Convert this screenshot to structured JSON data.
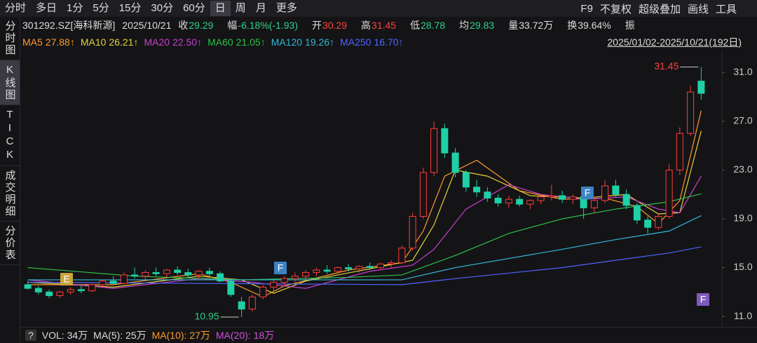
{
  "toolbar": {
    "tabs": [
      "分时",
      "多日",
      "1分",
      "5分",
      "15分",
      "30分",
      "60分",
      "日",
      "周",
      "月",
      "更多"
    ],
    "selected": 7,
    "right": [
      "F9",
      "不复权",
      "超级叠加",
      "画线",
      "工具"
    ]
  },
  "side_tabs": {
    "items": [
      "分时图",
      "K线图",
      "TICK",
      "成交明细",
      "分价表"
    ],
    "selected": 1
  },
  "header": {
    "symbol": "301292.SZ[海科新源]",
    "date": "2025/10/21",
    "items": [
      {
        "label": "收",
        "value": "29.29",
        "color": "#2fd08a"
      },
      {
        "label": "幅",
        "value": "-6.18%(-1.93)",
        "color": "#2fd08a"
      },
      {
        "label": "开",
        "value": "30.29",
        "color": "#ff4040"
      },
      {
        "label": "高",
        "value": "31.45",
        "color": "#ff4040"
      },
      {
        "label": "低",
        "value": "28.78",
        "color": "#2fd08a"
      },
      {
        "label": "均",
        "value": "29.83",
        "color": "#2fd08a"
      },
      {
        "label": "量",
        "value": "33.72万",
        "color": "#dddddd"
      },
      {
        "label": "换",
        "value": "39.64%",
        "color": "#dddddd"
      },
      {
        "label": "振",
        "value": "",
        "color": "#dddddd"
      }
    ]
  },
  "date_range": "2025/01/02-2025/10/21(192日)",
  "volume_bar": {
    "help": "?",
    "items": [
      {
        "text": "VOL: 34万",
        "color": "#dddddd"
      },
      {
        "text": "MA(5): 25万",
        "color": "#dddddd"
      },
      {
        "text": "MA(10): 27万",
        "color": "#ff9a2e"
      },
      {
        "text": "MA(20): 18万",
        "color": "#d050d8"
      }
    ]
  },
  "chart_data": {
    "type": "candlestick",
    "up_color": "#ff3b3b",
    "down_color": "#1fd0a6",
    "grid": false,
    "ylim": [
      10.2,
      32.8
    ],
    "yticks": [
      {
        "value": 11,
        "label": "11.0"
      },
      {
        "value": 15,
        "label": "15.0"
      },
      {
        "value": 19,
        "label": "19.0"
      },
      {
        "value": 23,
        "label": "23.0"
      },
      {
        "value": 27,
        "label": "27.0"
      },
      {
        "value": 31,
        "label": "31.0"
      }
    ],
    "ohlc": [
      [
        13.6,
        13.9,
        13.2,
        13.3
      ],
      [
        13.3,
        13.5,
        12.8,
        13.0
      ],
      [
        13.0,
        13.2,
        12.5,
        12.7
      ],
      [
        12.7,
        13.1,
        12.5,
        13.0
      ],
      [
        13.0,
        13.4,
        12.8,
        13.2
      ],
      [
        13.2,
        13.5,
        12.9,
        13.1
      ],
      [
        13.1,
        13.7,
        13.0,
        13.6
      ],
      [
        13.6,
        14.0,
        13.4,
        13.9
      ],
      [
        13.9,
        14.3,
        13.6,
        13.7
      ],
      [
        13.7,
        14.6,
        13.6,
        14.4
      ],
      [
        14.4,
        15.0,
        14.1,
        14.3
      ],
      [
        14.3,
        14.8,
        14.0,
        14.6
      ],
      [
        14.6,
        15.0,
        14.3,
        14.5
      ],
      [
        14.5,
        14.9,
        14.2,
        14.8
      ],
      [
        14.8,
        15.1,
        14.4,
        14.6
      ],
      [
        14.6,
        14.9,
        14.2,
        14.4
      ],
      [
        14.4,
        14.8,
        14.1,
        14.7
      ],
      [
        14.7,
        15.0,
        14.3,
        14.5
      ],
      [
        14.5,
        14.7,
        13.8,
        13.9
      ],
      [
        13.9,
        14.1,
        12.6,
        12.8
      ],
      [
        12.2,
        12.6,
        10.95,
        11.6
      ],
      [
        11.6,
        12.8,
        11.4,
        12.6
      ],
      [
        12.6,
        13.6,
        12.4,
        13.4
      ],
      [
        13.4,
        14.0,
        13.1,
        13.8
      ],
      [
        13.8,
        14.3,
        13.5,
        14.1
      ],
      [
        14.1,
        14.6,
        13.8,
        14.3
      ],
      [
        14.3,
        14.8,
        14.0,
        14.6
      ],
      [
        14.6,
        15.0,
        14.3,
        14.8
      ],
      [
        14.8,
        15.2,
        14.5,
        14.7
      ],
      [
        14.7,
        15.1,
        14.4,
        15.0
      ],
      [
        15.0,
        15.3,
        14.7,
        14.9
      ],
      [
        14.9,
        15.2,
        14.6,
        15.1
      ],
      [
        15.1,
        15.4,
        14.8,
        15.0
      ],
      [
        15.0,
        15.4,
        14.8,
        15.3
      ],
      [
        15.3,
        15.6,
        15.0,
        15.4
      ],
      [
        15.4,
        16.8,
        15.3,
        16.6
      ],
      [
        16.6,
        19.5,
        16.4,
        19.2
      ],
      [
        19.2,
        23.2,
        19.0,
        22.8
      ],
      [
        22.8,
        27.0,
        22.5,
        26.4
      ],
      [
        26.4,
        26.8,
        24.0,
        24.4
      ],
      [
        24.4,
        24.8,
        22.4,
        22.8
      ],
      [
        22.8,
        23.0,
        21.2,
        21.6
      ],
      [
        21.6,
        22.2,
        20.8,
        21.2
      ],
      [
        21.2,
        21.6,
        20.4,
        20.7
      ],
      [
        20.7,
        21.0,
        20.0,
        20.3
      ],
      [
        20.3,
        20.9,
        19.9,
        20.6
      ],
      [
        20.6,
        20.9,
        20.0,
        20.2
      ],
      [
        20.2,
        20.6,
        19.8,
        20.5
      ],
      [
        20.5,
        21.0,
        20.2,
        20.8
      ],
      [
        20.8,
        21.8,
        20.5,
        20.9
      ],
      [
        20.9,
        21.3,
        20.3,
        20.6
      ],
      [
        20.6,
        21.0,
        20.2,
        20.8
      ],
      [
        20.8,
        21.1,
        19.0,
        19.9
      ],
      [
        19.9,
        20.8,
        19.5,
        20.5
      ],
      [
        20.5,
        22.2,
        20.3,
        21.7
      ],
      [
        21.7,
        22.2,
        20.8,
        21.0
      ],
      [
        21.0,
        21.4,
        19.8,
        20.1
      ],
      [
        20.1,
        20.3,
        18.6,
        18.9
      ],
      [
        18.9,
        19.2,
        17.8,
        18.3
      ],
      [
        18.3,
        19.4,
        18.1,
        19.2
      ],
      [
        19.2,
        23.5,
        19.0,
        23.0
      ],
      [
        23.0,
        26.5,
        22.6,
        26.0
      ],
      [
        26.0,
        29.9,
        25.8,
        29.4
      ],
      [
        30.29,
        31.45,
        28.78,
        29.29
      ]
    ],
    "series": [
      {
        "name": "MA5",
        "color": "#ff9a2e",
        "x": [
          0,
          8,
          16,
          19,
          22,
          24,
          30,
          35,
          37,
          39,
          42,
          46,
          50,
          54,
          57,
          59,
          61,
          63
        ],
        "values": [
          13.6,
          13.6,
          14.5,
          13.8,
          12.6,
          13.5,
          14.8,
          15.4,
          18.0,
          22.5,
          23.8,
          21.3,
          20.6,
          20.7,
          20.0,
          18.6,
          20.5,
          27.88
        ]
      },
      {
        "name": "MA10",
        "color": "#e6d23a",
        "x": [
          0,
          8,
          16,
          20,
          23,
          26,
          32,
          36,
          38,
          40,
          43,
          47,
          52,
          56,
          59,
          61,
          63
        ],
        "values": [
          13.8,
          13.4,
          14.3,
          14.0,
          12.9,
          13.9,
          14.9,
          15.6,
          18.5,
          23.0,
          22.5,
          20.9,
          20.7,
          21.0,
          19.4,
          19.5,
          26.21
        ]
      },
      {
        "name": "MA20",
        "color": "#c93fd0",
        "x": [
          0,
          8,
          16,
          21,
          26,
          32,
          36,
          38,
          41,
          45,
          48,
          52,
          56,
          59,
          61,
          63
        ],
        "values": [
          14.0,
          13.3,
          14.1,
          13.8,
          13.3,
          14.7,
          15.2,
          16.5,
          19.8,
          21.8,
          21.0,
          20.6,
          20.8,
          19.8,
          19.5,
          22.5
        ]
      },
      {
        "name": "MA60",
        "color": "#2fbf4a",
        "x": [
          0,
          10,
          20,
          30,
          35,
          40,
          45,
          50,
          55,
          60,
          63
        ],
        "values": [
          15.0,
          14.3,
          14.0,
          14.2,
          14.4,
          16.0,
          17.8,
          19.0,
          19.8,
          20.4,
          21.05
        ]
      },
      {
        "name": "MA120",
        "color": "#33b7d8",
        "x": [
          0,
          20,
          35,
          40,
          50,
          55,
          60,
          63
        ],
        "values": [
          14.0,
          14.0,
          14.0,
          15.0,
          16.5,
          17.3,
          18.0,
          19.26
        ]
      },
      {
        "name": "MA250",
        "color": "#4f63ff",
        "x": [
          0,
          35,
          40,
          50,
          60,
          63
        ],
        "values": [
          13.8,
          13.6,
          14.1,
          15.0,
          16.2,
          16.7
        ]
      }
    ],
    "legend_values": [
      "27.88↑",
      "26.21↑",
      "22.50↑",
      "21.05↑",
      "19.26↑",
      "16.70↑"
    ],
    "event_markers": [
      {
        "label": "E",
        "color": "#c9a43b"
      },
      {
        "label": "F",
        "color": "#3c82c4"
      },
      {
        "label": "F",
        "color": "#3c82c4"
      },
      {
        "label": "F",
        "color": "#7d5bbf"
      }
    ]
  }
}
